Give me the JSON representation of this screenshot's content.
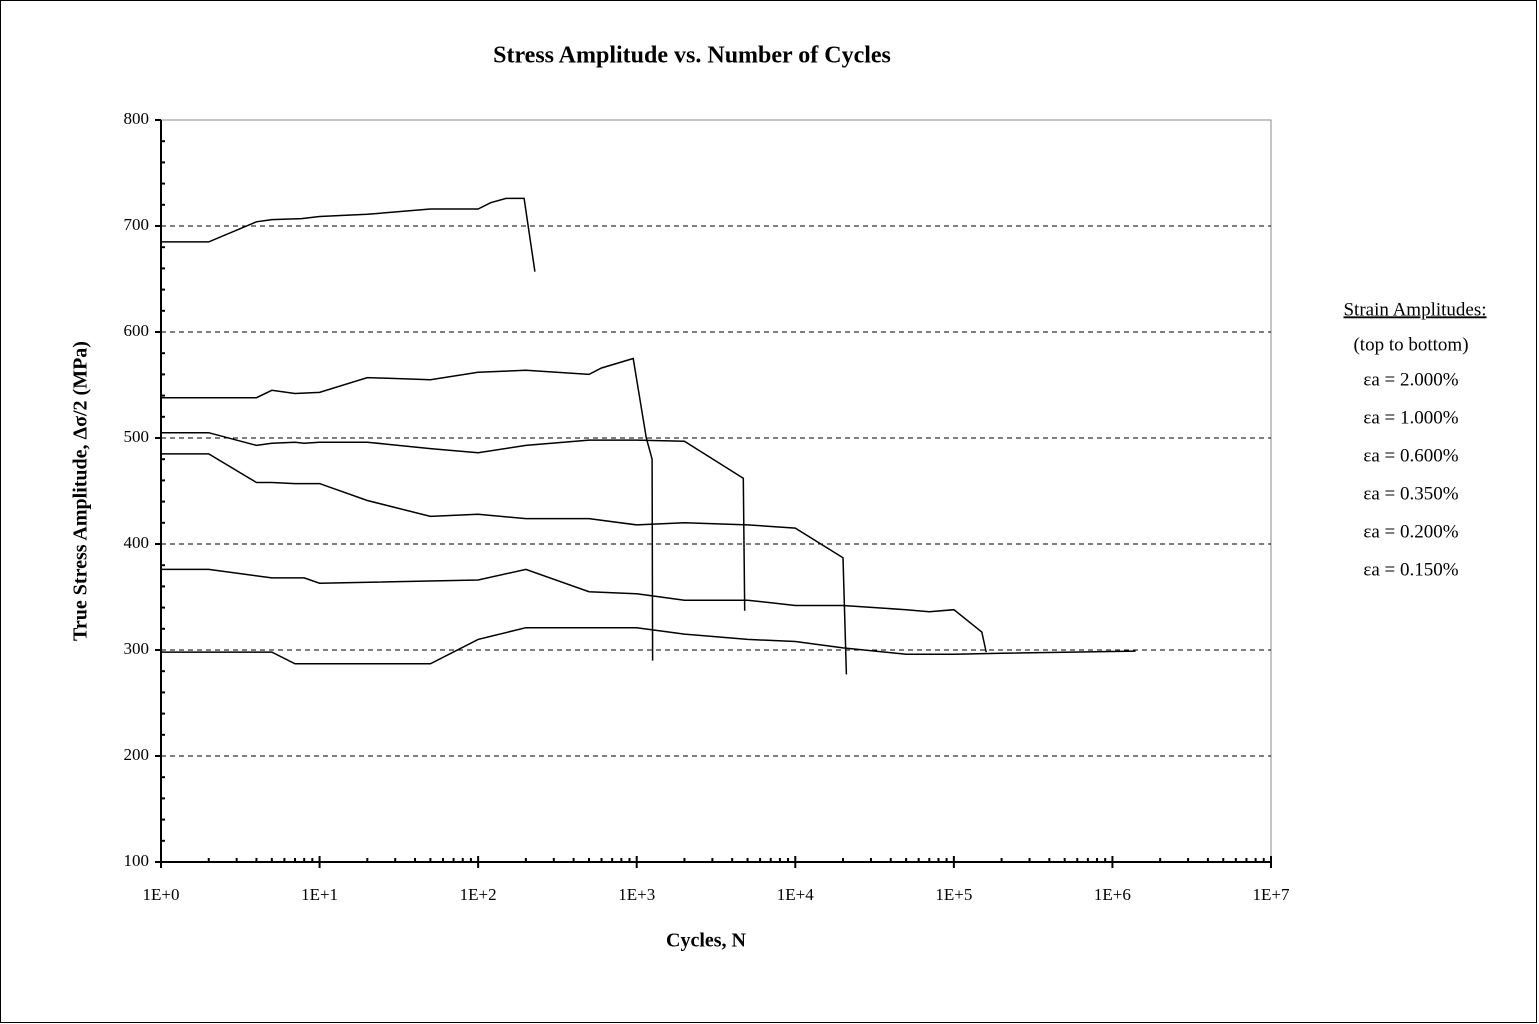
{
  "chart_data": {
    "type": "line",
    "title": "Stress Amplitude vs. Number of Cycles",
    "xlabel": "Cycles, N",
    "ylabel": "True Stress Amplitude, Δσ/2  (MPa)",
    "xscale": "log",
    "xlim": [
      1,
      10000000
    ],
    "xticks": [
      {
        "value": 1,
        "label": "1E+0"
      },
      {
        "value": 10,
        "label": "1E+1"
      },
      {
        "value": 100,
        "label": "1E+2"
      },
      {
        "value": 1000,
        "label": "1E+3"
      },
      {
        "value": 10000,
        "label": "1E+4"
      },
      {
        "value": 100000,
        "label": "1E+5"
      },
      {
        "value": 1000000,
        "label": "1E+6"
      },
      {
        "value": 10000000,
        "label": "1E+7"
      }
    ],
    "ylim": [
      100,
      800
    ],
    "yticks": [
      100,
      200,
      300,
      400,
      500,
      600,
      700,
      800
    ],
    "grid": true,
    "legend": "right",
    "legend_title": "Strain Amplitudes:",
    "legend_subtitle": "(top to bottom)",
    "series": [
      {
        "name": "εa = 2.000%",
        "color": "#000000",
        "x": [
          1,
          2,
          4,
          5,
          7.7,
          10,
          20,
          50,
          100,
          120,
          150,
          195,
          228
        ],
        "values": [
          685,
          685,
          704,
          706,
          707,
          709,
          711,
          716,
          716,
          722,
          726,
          726,
          657
        ]
      },
      {
        "name": "εa = 1.000%",
        "color": "#000000",
        "x": [
          1,
          2,
          4,
          5,
          7,
          10,
          20,
          50,
          100,
          200,
          500,
          600,
          950,
          1150,
          1250,
          1260
        ],
        "values": [
          538,
          538,
          538,
          545,
          542,
          543,
          557,
          555,
          562,
          564,
          560,
          566,
          575,
          500,
          480,
          290
        ]
      },
      {
        "name": "εa = 0.600%",
        "color": "#000000",
        "x": [
          1,
          2,
          4,
          5,
          7,
          8,
          10,
          20,
          50,
          100,
          200,
          500,
          1000,
          2000,
          4700,
          4800
        ],
        "values": [
          505,
          505,
          493,
          495,
          496,
          495,
          496,
          496,
          490,
          486,
          493,
          498,
          498,
          497,
          462,
          337
        ]
      },
      {
        "name": "εa = 0.350%",
        "color": "#000000",
        "x": [
          1,
          2,
          4,
          5,
          7,
          10,
          20,
          50,
          100,
          200,
          500,
          1000,
          2000,
          5000,
          10000,
          20000,
          21000
        ],
        "values": [
          485,
          485,
          458,
          458,
          457,
          457,
          441,
          426,
          428,
          424,
          424,
          418,
          420,
          418,
          415,
          387,
          277
        ]
      },
      {
        "name": "εa = 0.200%",
        "color": "#000000",
        "x": [
          1,
          2,
          5,
          8,
          10,
          100,
          200,
          500,
          1000,
          2000,
          5000,
          10000,
          20000,
          50000,
          70000,
          100000,
          150000,
          160000
        ],
        "values": [
          376,
          376,
          368,
          368,
          363,
          366,
          376,
          355,
          353,
          347,
          347,
          342,
          342,
          338,
          336,
          338,
          317,
          298
        ]
      },
      {
        "name": "εa = 0.150%",
        "color": "#000000",
        "x": [
          1,
          5,
          7,
          20,
          50,
          100,
          200,
          500,
          1000,
          2000,
          5000,
          10000,
          20000,
          50000,
          100000,
          200000,
          1400000
        ],
        "values": [
          298,
          298,
          287,
          287,
          287,
          310,
          321,
          321,
          321,
          315,
          310,
          308,
          302,
          296,
          296,
          297,
          299
        ]
      }
    ]
  }
}
